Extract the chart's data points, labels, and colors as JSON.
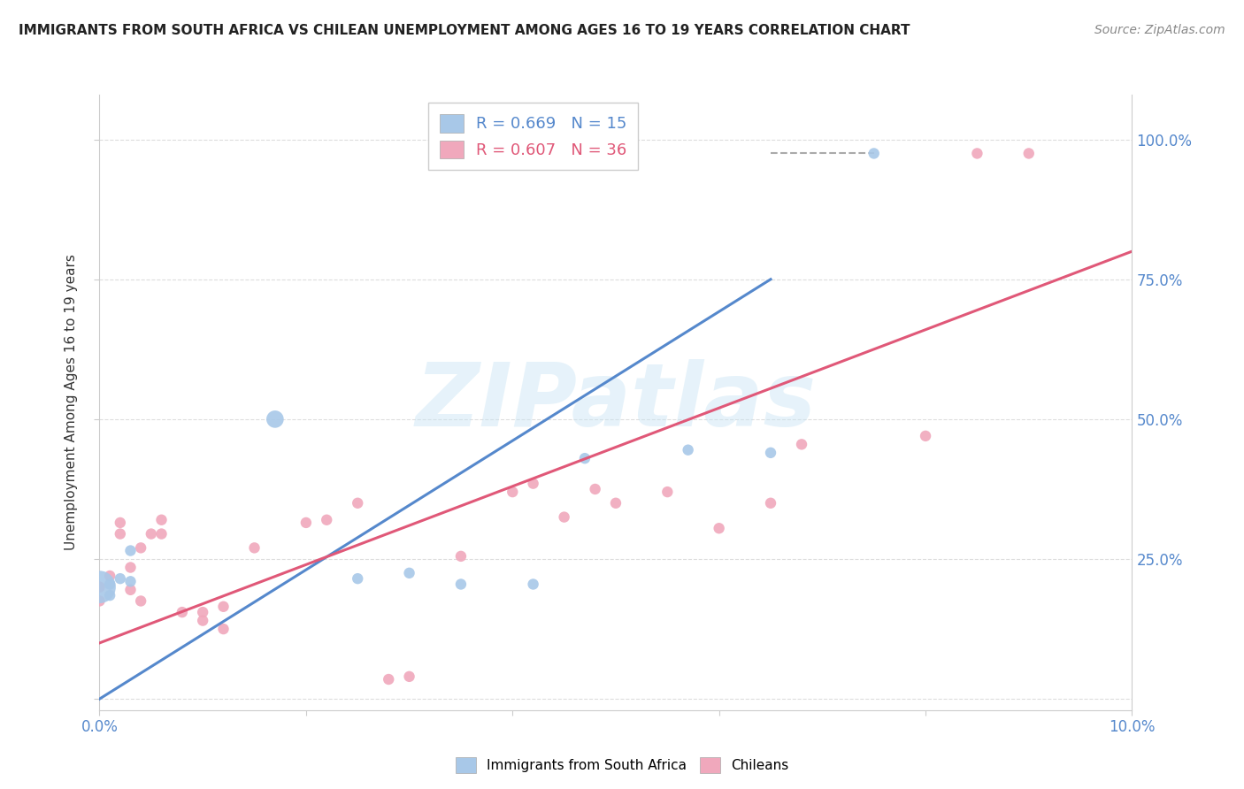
{
  "title": "IMMIGRANTS FROM SOUTH AFRICA VS CHILEAN UNEMPLOYMENT AMONG AGES 16 TO 19 YEARS CORRELATION CHART",
  "source": "Source: ZipAtlas.com",
  "ylabel": "Unemployment Among Ages 16 to 19 years",
  "xlim": [
    0.0,
    0.1
  ],
  "ylim": [
    -0.02,
    1.08
  ],
  "blue_R": 0.669,
  "blue_N": 15,
  "pink_R": 0.607,
  "pink_N": 36,
  "blue_color": "#A8C8E8",
  "pink_color": "#F0A8BC",
  "blue_line_color": "#5588CC",
  "pink_line_color": "#E05878",
  "watermark": "ZIPatlas",
  "blue_points": [
    [
      0.0,
      0.2
    ],
    [
      0.001,
      0.185
    ],
    [
      0.001,
      0.205
    ],
    [
      0.002,
      0.215
    ],
    [
      0.003,
      0.21
    ],
    [
      0.003,
      0.265
    ],
    [
      0.017,
      0.5
    ],
    [
      0.025,
      0.215
    ],
    [
      0.03,
      0.225
    ],
    [
      0.035,
      0.205
    ],
    [
      0.042,
      0.205
    ],
    [
      0.047,
      0.43
    ],
    [
      0.057,
      0.445
    ],
    [
      0.065,
      0.44
    ],
    [
      0.075,
      0.975
    ]
  ],
  "blue_sizes": [
    700,
    80,
    80,
    80,
    80,
    80,
    200,
    80,
    80,
    80,
    80,
    80,
    80,
    80,
    80
  ],
  "pink_points": [
    [
      0.0,
      0.175
    ],
    [
      0.0,
      0.2
    ],
    [
      0.001,
      0.22
    ],
    [
      0.002,
      0.295
    ],
    [
      0.002,
      0.315
    ],
    [
      0.003,
      0.195
    ],
    [
      0.003,
      0.235
    ],
    [
      0.004,
      0.27
    ],
    [
      0.004,
      0.175
    ],
    [
      0.005,
      0.295
    ],
    [
      0.006,
      0.295
    ],
    [
      0.006,
      0.32
    ],
    [
      0.008,
      0.155
    ],
    [
      0.01,
      0.155
    ],
    [
      0.01,
      0.14
    ],
    [
      0.012,
      0.165
    ],
    [
      0.012,
      0.125
    ],
    [
      0.015,
      0.27
    ],
    [
      0.02,
      0.315
    ],
    [
      0.022,
      0.32
    ],
    [
      0.025,
      0.35
    ],
    [
      0.028,
      0.035
    ],
    [
      0.03,
      0.04
    ],
    [
      0.035,
      0.255
    ],
    [
      0.04,
      0.37
    ],
    [
      0.042,
      0.385
    ],
    [
      0.045,
      0.325
    ],
    [
      0.048,
      0.375
    ],
    [
      0.05,
      0.35
    ],
    [
      0.055,
      0.37
    ],
    [
      0.06,
      0.305
    ],
    [
      0.065,
      0.35
    ],
    [
      0.068,
      0.455
    ],
    [
      0.08,
      0.47
    ],
    [
      0.085,
      0.975
    ],
    [
      0.09,
      0.975
    ]
  ],
  "pink_sizes": [
    80,
    80,
    80,
    80,
    80,
    80,
    80,
    80,
    80,
    80,
    80,
    80,
    80,
    80,
    80,
    80,
    80,
    80,
    80,
    80,
    80,
    80,
    80,
    80,
    80,
    80,
    80,
    80,
    80,
    80,
    80,
    80,
    80,
    80,
    80,
    80
  ],
  "blue_line_x": [
    0.0,
    0.065
  ],
  "blue_line_y": [
    0.0,
    0.75
  ],
  "pink_line_x": [
    0.0,
    0.1
  ],
  "pink_line_y": [
    0.1,
    0.8
  ],
  "dashed_line_x": [
    0.065,
    0.075
  ],
  "dashed_line_y": [
    0.975,
    0.975
  ],
  "background_color": "#FFFFFF",
  "grid_color": "#DDDDDD"
}
